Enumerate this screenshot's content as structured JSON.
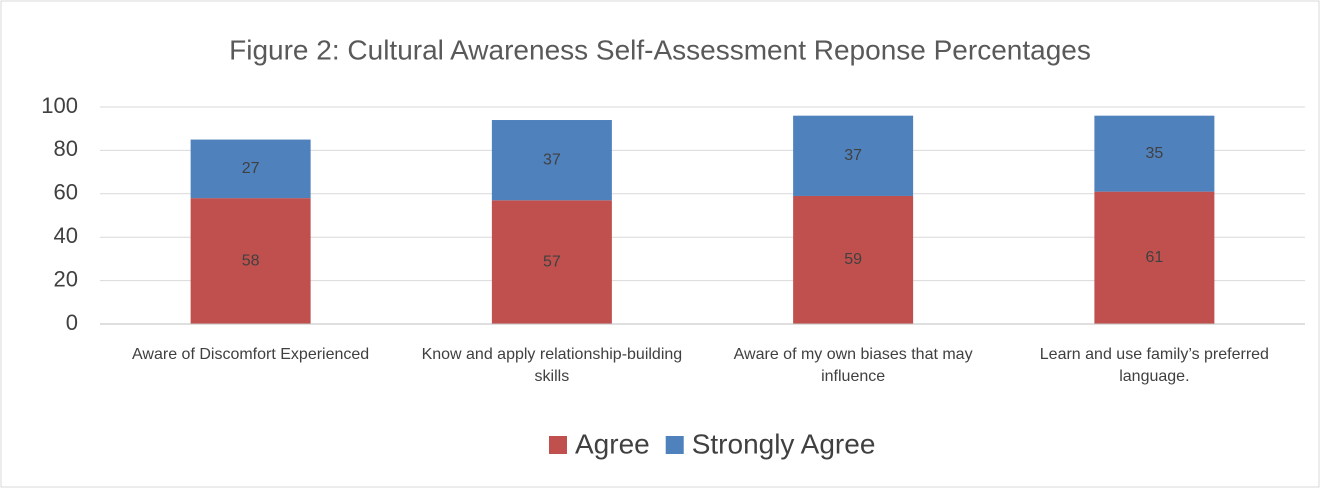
{
  "chart_data": {
    "type": "stacked_bar",
    "title": "Figure 2: Cultural Awareness Self-Assessment Reponse Percentages",
    "categories": [
      "Aware of Discomfort Experienced",
      "Know and apply relationship-building skills",
      "Aware of my own biases that may influence",
      "Learn and use family’s preferred language."
    ],
    "series": [
      {
        "name": "Agree",
        "color": "#c0504d",
        "values": [
          58,
          57,
          59,
          61
        ]
      },
      {
        "name": "Strongly Agree",
        "color": "#4f81bd",
        "values": [
          27,
          37,
          37,
          35
        ]
      }
    ],
    "ylim": [
      0,
      100
    ],
    "yticks": [
      0,
      20,
      40,
      60,
      80,
      100
    ],
    "grid": true,
    "legend": "bottom"
  }
}
